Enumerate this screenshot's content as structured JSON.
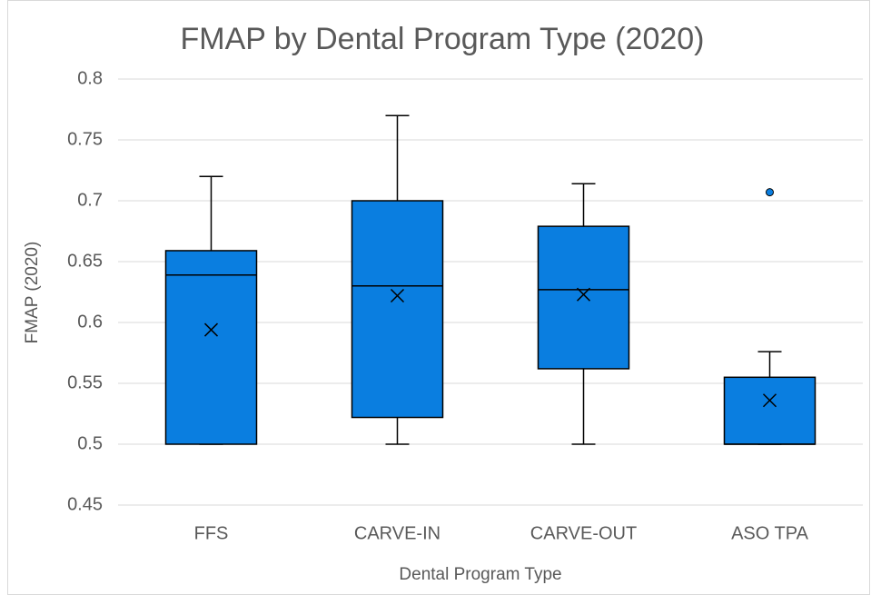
{
  "chart_data": {
    "type": "box",
    "title": "FMAP by Dental Program Type (2020)",
    "x_label": "Dental Program Type",
    "y_label": "FMAP (2020)",
    "categories": [
      "FFS",
      "CARVE-IN",
      "CARVE-OUT",
      "ASO TPA"
    ],
    "color": "#0a7ee0",
    "boxes": [
      {
        "min": 0.5,
        "q1": 0.5,
        "median": 0.639,
        "q3": 0.659,
        "max": 0.72,
        "mean": 0.594,
        "outliers": []
      },
      {
        "min": 0.5,
        "q1": 0.522,
        "median": 0.63,
        "q3": 0.7,
        "max": 0.77,
        "mean": 0.622,
        "outliers": []
      },
      {
        "min": 0.5,
        "q1": 0.562,
        "median": 0.627,
        "q3": 0.679,
        "max": 0.714,
        "mean": 0.623,
        "outliers": []
      },
      {
        "min": 0.5,
        "q1": 0.5,
        "median": 0.5,
        "q3": 0.555,
        "max": 0.576,
        "mean": 0.536,
        "outliers": [
          0.707
        ]
      }
    ],
    "ylim": [
      0.45,
      0.8
    ],
    "yticks": [
      0.45,
      0.5,
      0.55,
      0.6,
      0.65,
      0.7,
      0.75,
      0.8
    ],
    "grid": true
  }
}
